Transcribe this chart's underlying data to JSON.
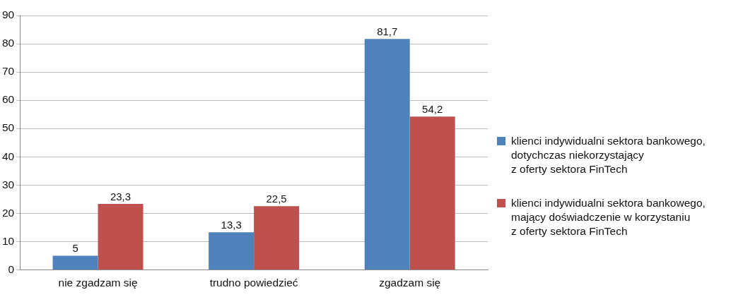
{
  "chart_data": {
    "type": "bar",
    "categories": [
      "nie zgadzam się",
      "trudno powiedzieć",
      "zgadzam się"
    ],
    "series": [
      {
        "name": "klienci indywidualni sektora bankowego,\ndotychczas niekorzystający\nz oferty sektora FinTech",
        "color": "#4f81bd",
        "values": [
          5,
          13.3,
          81.7
        ],
        "value_labels": [
          "5",
          "13,3",
          "81,7"
        ]
      },
      {
        "name": "klienci indywidualni sektora bankowego,\nmający doświadczenie w korzystaniu\nz oferty sektora FinTech",
        "color": "#c0504d",
        "values": [
          23.3,
          22.5,
          54.2
        ],
        "value_labels": [
          "23,3",
          "22,5",
          "54,2"
        ]
      }
    ],
    "ylim": [
      0,
      90
    ],
    "yticks": [
      0,
      10,
      20,
      30,
      40,
      50,
      60,
      70,
      80,
      90
    ],
    "grid": "y",
    "legend": "right"
  }
}
